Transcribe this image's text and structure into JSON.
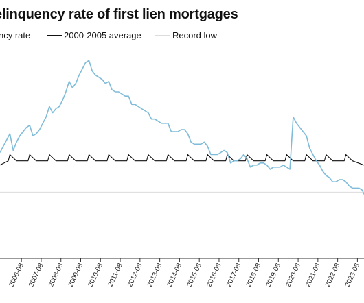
{
  "chart_data": {
    "type": "line",
    "title": "elinquency rate of first lien mortgages",
    "xlabel": "",
    "ylabel": "",
    "categories": [
      "2006-08",
      "2007-08",
      "2008-08",
      "2009-08",
      "2010-08",
      "2011-08",
      "2012-08",
      "2013-08",
      "2014-08",
      "2015-08",
      "2016-08",
      "2017-08",
      "2018-08",
      "2019-08",
      "2020-08",
      "2021-08",
      "2022-08",
      "2023-08"
    ],
    "x_start": "2005-07",
    "x_end": "2023-12",
    "ylim": [
      0,
      10
    ],
    "grid": false,
    "legend_position": "top",
    "series": [
      {
        "name": "ncy rate",
        "label_shown": "ncy rate",
        "color": "#7fbcd9",
        "points": [
          [
            "2005-07",
            5.0
          ],
          [
            "2005-09",
            5.3
          ],
          [
            "2005-11",
            5.6
          ],
          [
            "2006-01",
            5.9
          ],
          [
            "2006-03",
            5.1
          ],
          [
            "2006-05",
            5.5
          ],
          [
            "2006-07",
            5.8
          ],
          [
            "2006-09",
            6.0
          ],
          [
            "2006-11",
            6.2
          ],
          [
            "2007-01",
            6.3
          ],
          [
            "2007-03",
            5.8
          ],
          [
            "2007-05",
            5.9
          ],
          [
            "2007-07",
            6.1
          ],
          [
            "2007-09",
            6.4
          ],
          [
            "2007-11",
            6.7
          ],
          [
            "2008-01",
            7.2
          ],
          [
            "2008-03",
            6.9
          ],
          [
            "2008-05",
            7.1
          ],
          [
            "2008-07",
            7.2
          ],
          [
            "2008-09",
            7.5
          ],
          [
            "2008-11",
            7.9
          ],
          [
            "2009-01",
            8.4
          ],
          [
            "2009-03",
            8.1
          ],
          [
            "2009-05",
            8.3
          ],
          [
            "2009-07",
            8.7
          ],
          [
            "2009-09",
            9.0
          ],
          [
            "2009-11",
            9.3
          ],
          [
            "2010-01",
            9.4
          ],
          [
            "2010-03",
            8.9
          ],
          [
            "2010-05",
            8.7
          ],
          [
            "2010-07",
            8.6
          ],
          [
            "2010-09",
            8.5
          ],
          [
            "2010-11",
            8.3
          ],
          [
            "2011-01",
            8.4
          ],
          [
            "2011-03",
            8.0
          ],
          [
            "2011-05",
            7.9
          ],
          [
            "2011-07",
            7.9
          ],
          [
            "2011-09",
            7.8
          ],
          [
            "2011-11",
            7.7
          ],
          [
            "2012-01",
            7.7
          ],
          [
            "2012-03",
            7.3
          ],
          [
            "2012-05",
            7.3
          ],
          [
            "2012-07",
            7.2
          ],
          [
            "2012-09",
            7.1
          ],
          [
            "2012-11",
            7.0
          ],
          [
            "2013-01",
            6.9
          ],
          [
            "2013-03",
            6.6
          ],
          [
            "2013-05",
            6.6
          ],
          [
            "2013-07",
            6.5
          ],
          [
            "2013-09",
            6.4
          ],
          [
            "2013-11",
            6.4
          ],
          [
            "2014-01",
            6.4
          ],
          [
            "2014-03",
            6.0
          ],
          [
            "2014-05",
            6.0
          ],
          [
            "2014-07",
            6.0
          ],
          [
            "2014-09",
            6.1
          ],
          [
            "2014-11",
            6.1
          ],
          [
            "2015-01",
            5.9
          ],
          [
            "2015-03",
            5.5
          ],
          [
            "2015-05",
            5.4
          ],
          [
            "2015-07",
            5.4
          ],
          [
            "2015-09",
            5.4
          ],
          [
            "2015-11",
            5.5
          ],
          [
            "2016-01",
            5.3
          ],
          [
            "2016-03",
            4.9
          ],
          [
            "2016-05",
            4.9
          ],
          [
            "2016-07",
            4.9
          ],
          [
            "2016-09",
            5.0
          ],
          [
            "2016-11",
            5.1
          ],
          [
            "2017-01",
            5.0
          ],
          [
            "2017-03",
            4.5
          ],
          [
            "2017-05",
            4.6
          ],
          [
            "2017-07",
            4.6
          ],
          [
            "2017-09",
            4.7
          ],
          [
            "2017-11",
            4.9
          ],
          [
            "2018-01",
            4.7
          ],
          [
            "2018-03",
            4.3
          ],
          [
            "2018-05",
            4.4
          ],
          [
            "2018-07",
            4.4
          ],
          [
            "2018-09",
            4.5
          ],
          [
            "2018-11",
            4.5
          ],
          [
            "2019-01",
            4.4
          ],
          [
            "2019-03",
            4.2
          ],
          [
            "2019-05",
            4.3
          ],
          [
            "2019-07",
            4.3
          ],
          [
            "2019-09",
            4.3
          ],
          [
            "2019-11",
            4.4
          ],
          [
            "2020-01",
            4.3
          ],
          [
            "2020-03",
            4.2
          ],
          [
            "2020-05",
            6.7
          ],
          [
            "2020-07",
            6.4
          ],
          [
            "2020-09",
            6.2
          ],
          [
            "2020-11",
            6.0
          ],
          [
            "2021-01",
            5.8
          ],
          [
            "2021-03",
            5.2
          ],
          [
            "2021-05",
            4.9
          ],
          [
            "2021-07",
            4.6
          ],
          [
            "2021-09",
            4.4
          ],
          [
            "2021-11",
            4.1
          ],
          [
            "2022-01",
            3.9
          ],
          [
            "2022-03",
            3.8
          ],
          [
            "2022-05",
            3.6
          ],
          [
            "2022-07",
            3.6
          ],
          [
            "2022-09",
            3.7
          ],
          [
            "2022-11",
            3.7
          ],
          [
            "2023-01",
            3.6
          ],
          [
            "2023-03",
            3.4
          ],
          [
            "2023-05",
            3.3
          ],
          [
            "2023-07",
            3.3
          ],
          [
            "2023-09",
            3.3
          ],
          [
            "2023-11",
            3.2
          ],
          [
            "2023-12",
            3.0
          ]
        ]
      },
      {
        "name": "2000-2005 average",
        "label_shown": "2000-2005 average",
        "color": "#111111",
        "points": [
          [
            "2005-07",
            4.4
          ],
          [
            "2005-12",
            4.6
          ],
          [
            "2006-01",
            4.9
          ],
          [
            "2006-05",
            4.6
          ],
          [
            "2006-12",
            4.6
          ],
          [
            "2007-01",
            4.9
          ],
          [
            "2007-05",
            4.6
          ],
          [
            "2007-12",
            4.6
          ],
          [
            "2008-01",
            4.9
          ],
          [
            "2008-05",
            4.6
          ],
          [
            "2008-12",
            4.6
          ],
          [
            "2009-01",
            4.9
          ],
          [
            "2009-05",
            4.6
          ],
          [
            "2009-12",
            4.6
          ],
          [
            "2010-01",
            4.9
          ],
          [
            "2010-05",
            4.6
          ],
          [
            "2010-12",
            4.6
          ],
          [
            "2011-01",
            4.9
          ],
          [
            "2011-05",
            4.6
          ],
          [
            "2011-12",
            4.6
          ],
          [
            "2012-01",
            4.9
          ],
          [
            "2012-05",
            4.6
          ],
          [
            "2012-12",
            4.6
          ],
          [
            "2013-01",
            4.9
          ],
          [
            "2013-05",
            4.6
          ],
          [
            "2013-12",
            4.6
          ],
          [
            "2014-01",
            4.9
          ],
          [
            "2014-05",
            4.6
          ],
          [
            "2014-12",
            4.6
          ],
          [
            "2015-01",
            4.9
          ],
          [
            "2015-05",
            4.6
          ],
          [
            "2015-12",
            4.6
          ],
          [
            "2016-01",
            4.9
          ],
          [
            "2016-05",
            4.6
          ],
          [
            "2016-12",
            4.6
          ],
          [
            "2017-01",
            4.9
          ],
          [
            "2017-05",
            4.6
          ],
          [
            "2017-12",
            4.6
          ],
          [
            "2018-01",
            4.9
          ],
          [
            "2018-05",
            4.6
          ],
          [
            "2018-12",
            4.6
          ],
          [
            "2019-01",
            4.9
          ],
          [
            "2019-05",
            4.6
          ],
          [
            "2019-12",
            4.6
          ],
          [
            "2020-01",
            4.9
          ],
          [
            "2020-05",
            4.6
          ],
          [
            "2020-12",
            4.6
          ],
          [
            "2021-01",
            4.9
          ],
          [
            "2021-05",
            4.6
          ],
          [
            "2021-12",
            4.6
          ],
          [
            "2022-01",
            4.9
          ],
          [
            "2022-05",
            4.6
          ],
          [
            "2022-12",
            4.6
          ],
          [
            "2023-01",
            4.9
          ],
          [
            "2023-05",
            4.6
          ],
          [
            "2023-12",
            4.4
          ]
        ]
      },
      {
        "name": "Record low",
        "label_shown": "Record low",
        "color": "#dcdcdc",
        "points": [
          [
            "2005-07",
            3.1
          ],
          [
            "2023-12",
            3.1
          ]
        ]
      }
    ]
  }
}
